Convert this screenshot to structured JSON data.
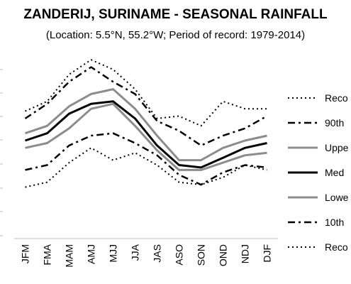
{
  "chart_data": {
    "type": "line",
    "title": "ZANDERIJ, SURINAME - SEASONAL RAINFALL",
    "subtitle": "(Location: 5.5°N, 55.2°W; Period of record: 1979-2014)",
    "xlabel": "",
    "ylabel": "",
    "categories": [
      "JFM",
      "FMA",
      "MAM",
      "AMJ",
      "MJJ",
      "JJA",
      "JAS",
      "ASO",
      "SON",
      "OND",
      "NDJ",
      "DJF"
    ],
    "y_tick_labels_visible": false,
    "ylim": [
      0,
      8
    ],
    "grid": false,
    "legend_position": "right",
    "series": [
      {
        "name": "Reco",
        "style": "dotted",
        "color": "#000000",
        "width": 2,
        "values": [
          5.2,
          5.6,
          6.7,
          7.3,
          6.9,
          6.1,
          4.9,
          5.0,
          4.6,
          5.6,
          5.3,
          5.3
        ]
      },
      {
        "name": "90th",
        "style": "dashdot",
        "color": "#000000",
        "width": 2.5,
        "values": [
          4.9,
          5.5,
          6.4,
          7.0,
          6.4,
          5.9,
          4.8,
          4.4,
          3.8,
          4.2,
          4.5,
          5.0
        ]
      },
      {
        "name": "Uppe",
        "style": "solid",
        "color": "#8c8c8c",
        "width": 3,
        "values": [
          4.3,
          4.6,
          5.4,
          5.9,
          6.1,
          5.3,
          4.2,
          3.2,
          3.2,
          3.7,
          4.0,
          4.2
        ]
      },
      {
        "name": "Med",
        "style": "solid",
        "color": "#000000",
        "width": 3,
        "values": [
          4.0,
          4.3,
          5.1,
          5.5,
          5.6,
          4.9,
          3.8,
          3.0,
          2.9,
          3.3,
          3.7,
          3.9
        ]
      },
      {
        "name": "Lowe",
        "style": "solid",
        "color": "#8c8c8c",
        "width": 3,
        "values": [
          3.7,
          3.9,
          4.5,
          5.3,
          5.5,
          4.6,
          3.6,
          2.8,
          2.8,
          3.1,
          3.4,
          3.5
        ]
      },
      {
        "name": "10th",
        "style": "dashdot",
        "color": "#000000",
        "width": 2.5,
        "values": [
          2.8,
          3.0,
          3.8,
          4.2,
          4.3,
          3.9,
          3.4,
          2.6,
          2.2,
          2.7,
          3.0,
          2.9
        ]
      },
      {
        "name": "Reco",
        "style": "dotted",
        "color": "#000000",
        "width": 2,
        "values": [
          2.1,
          2.3,
          3.1,
          3.7,
          3.2,
          3.5,
          3.0,
          2.3,
          2.2,
          2.5,
          3.0,
          2.8
        ]
      }
    ]
  }
}
